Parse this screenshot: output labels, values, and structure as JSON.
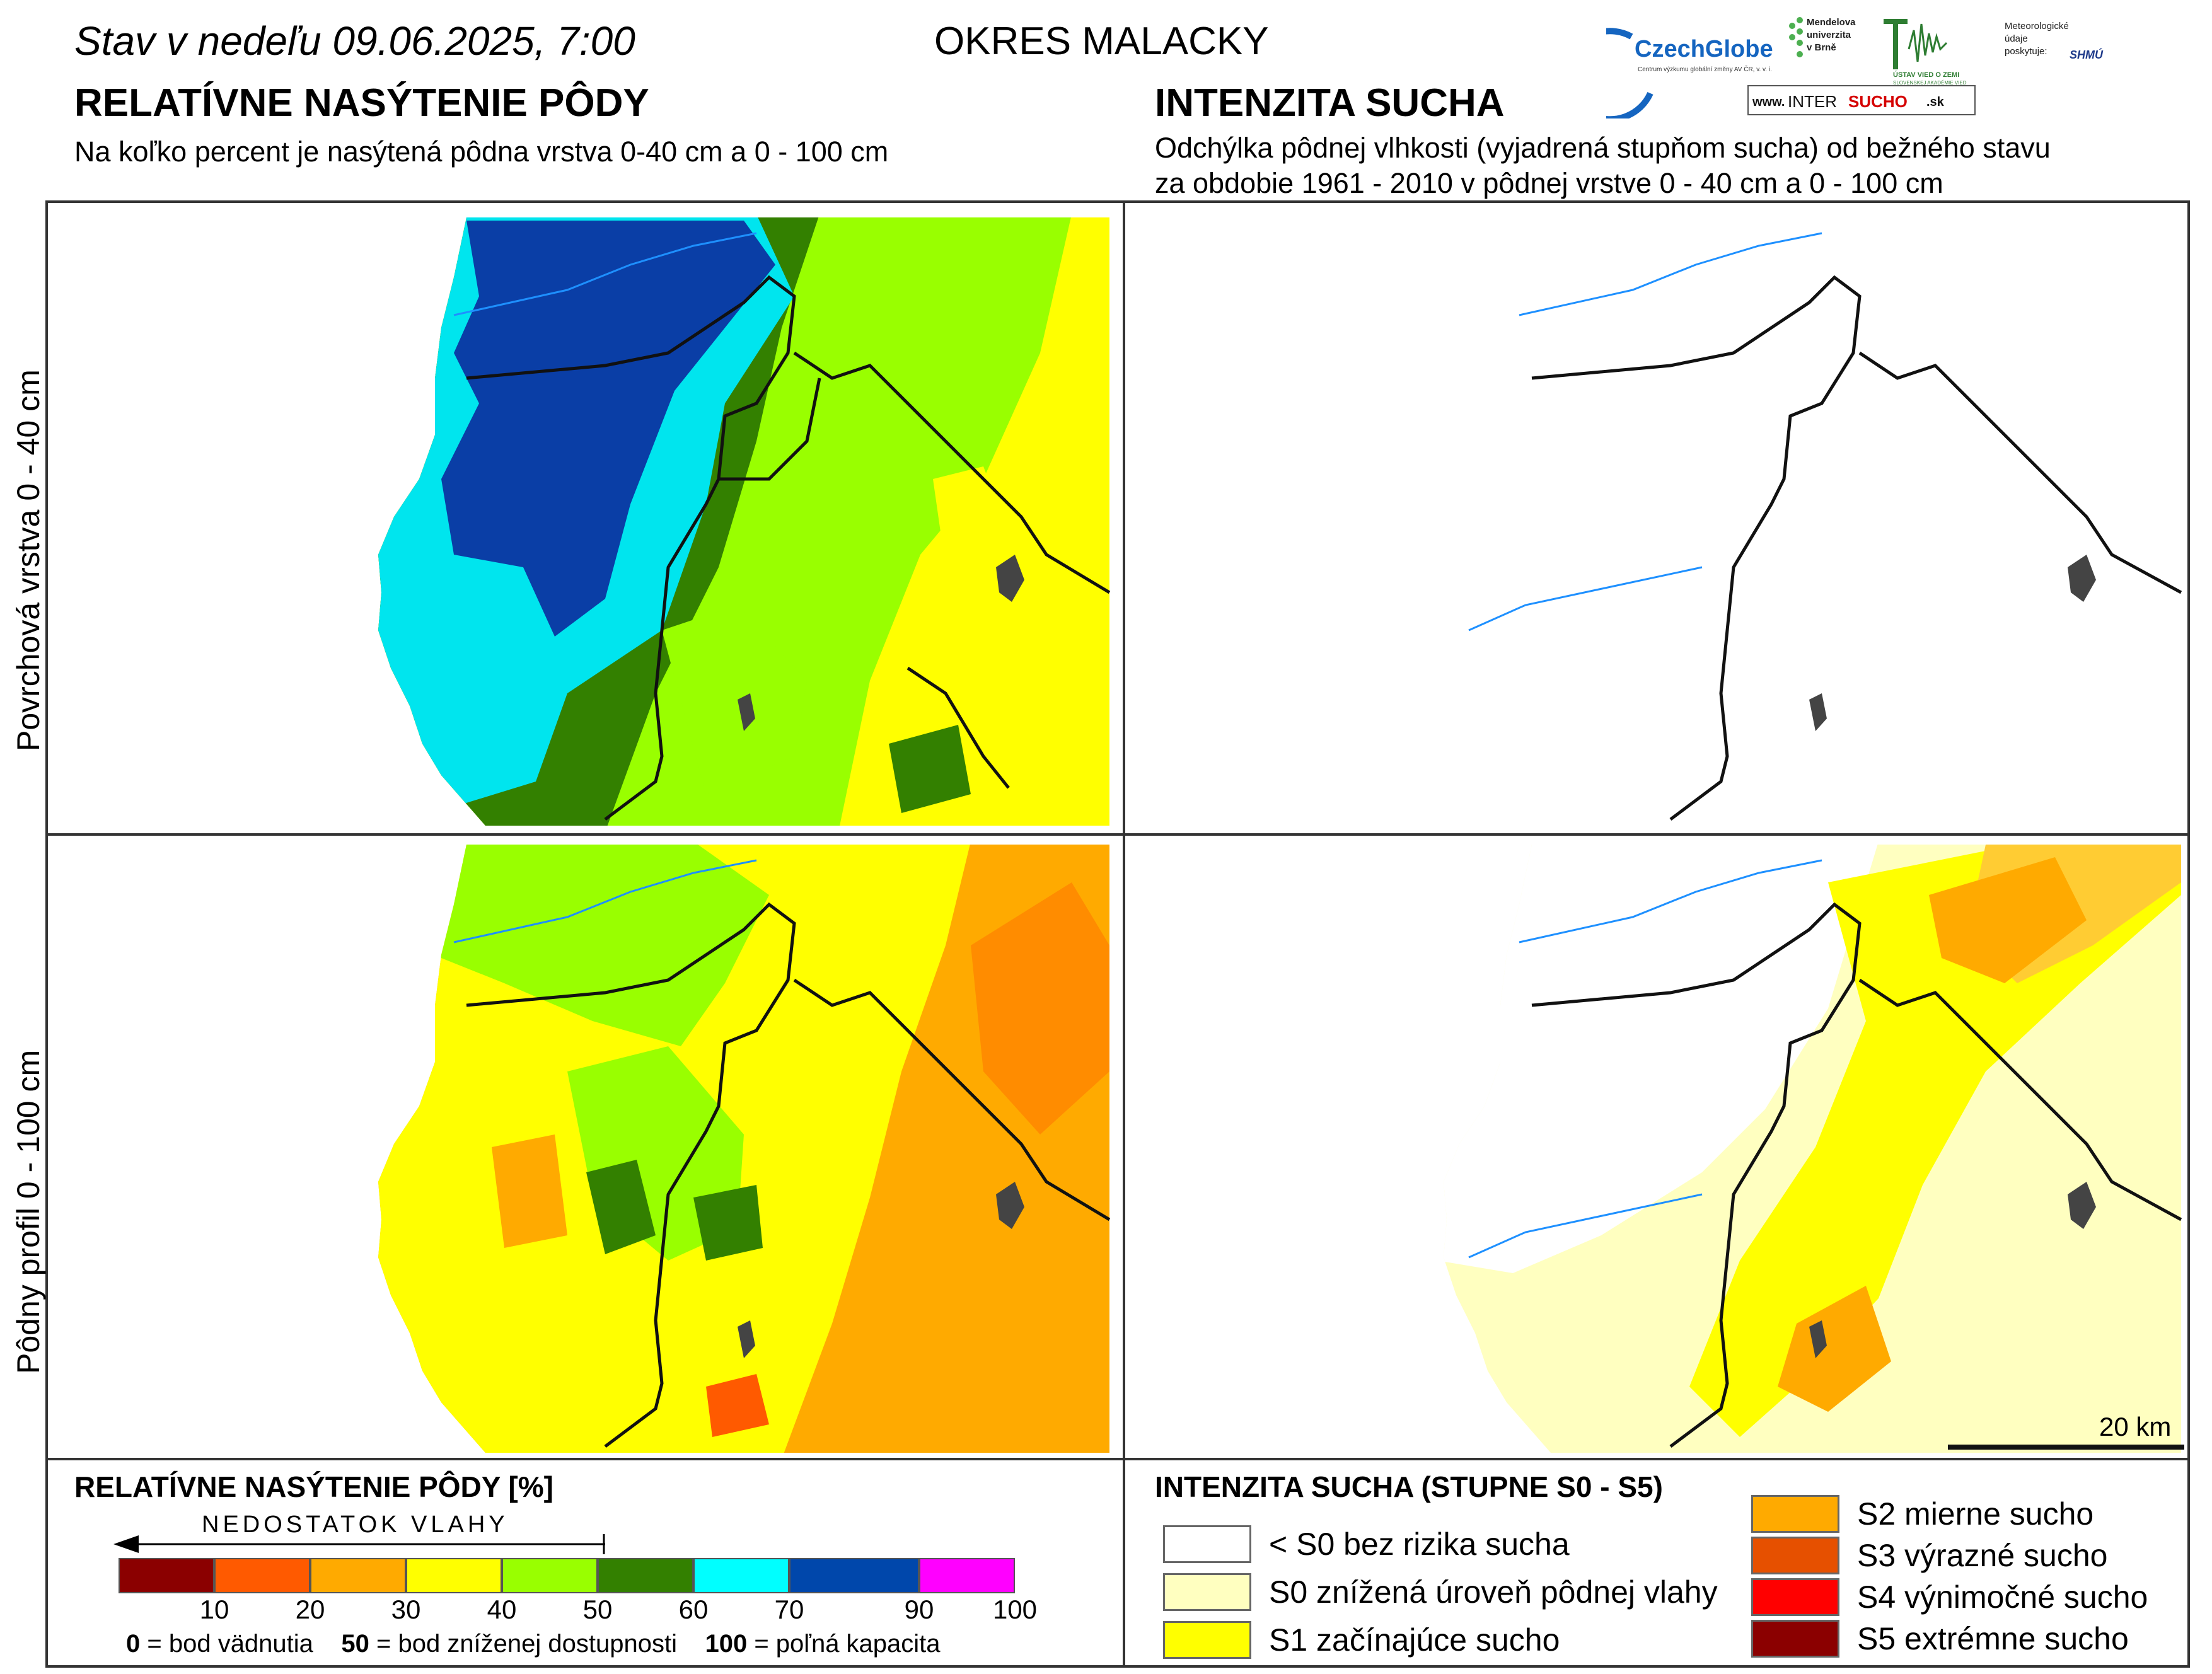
{
  "header": {
    "date_text": "Stav v nedeľu 09.06.2025, 7:00",
    "district": "OKRES  MALACKY",
    "left_title": "RELATÍVNE NASÝTENIE PÔDY",
    "left_subtitle": "Na koľko percent je nasýtená pôdna vrstva 0-40 cm a 0 - 100 cm",
    "right_title": "INTENZITA SUCHA",
    "right_subtitle_1": "Odchýlka pôdnej vlhkosti (vyjadrená stupňom sucha) od bežného stavu",
    "right_subtitle_2": "za obdobie 1961 - 2010 v pôdnej vrstve 0 - 40 cm a 0 - 100 cm"
  },
  "logos": {
    "czechglobe": "CzechGlobe",
    "czechglobe_sub": "Centrum výzkumu globální změny AV ČR, v. v. i.",
    "mendelu_1": "Mendelova",
    "mendelu_2": "univerzita",
    "mendelu_3": "v Brně",
    "ustav": "ÚSTAV VIED O ZEMI",
    "ustav_sub": "SLOVENSKEJ AKADÉMIE VIED",
    "meteo_1": "Meteorologické",
    "meteo_2": "údaje",
    "meteo_3": "poskytuje:",
    "shmu": "SHMÚ",
    "intersucho_prefix": "www.",
    "intersucho_a": "INTER",
    "intersucho_b": "SUCHO",
    "intersucho_c": ".sk"
  },
  "rows": {
    "top_label": "Povrchová vrstva 0 - 40 cm",
    "bottom_label": "Pôdny profil 0 - 100 cm"
  },
  "scale_bar": {
    "label": "20 km"
  },
  "saturation_legend": {
    "title": "RELATÍVNE NASÝTENIE PÔDY [%]",
    "arrow_label": "NEDOSTATOK VLAHY",
    "bins": [
      {
        "color": "#8b0000"
      },
      {
        "color": "#ff5a00"
      },
      {
        "color": "#ffaa00"
      },
      {
        "color": "#ffff00"
      },
      {
        "color": "#99ff00"
      },
      {
        "color": "#338000"
      },
      {
        "color": "#00ffff"
      },
      {
        "color": "#0047ab"
      },
      {
        "color": "#ff00ff"
      }
    ],
    "ticks": [
      "10",
      "20",
      "30",
      "40",
      "50",
      "60",
      "70",
      "90",
      "100"
    ],
    "def_0_num": "0",
    "def_0_text": " = bod vädnutia",
    "def_50_num": "50",
    "def_50_text": " = bod zníženej dostupnosti",
    "def_100_num": "100",
    "def_100_text": " = poľná kapacita"
  },
  "drought_legend": {
    "title": "INTENZITA SUCHA (STUPNE S0 - S5)",
    "items": [
      {
        "label": "< S0 bez rizika sucha",
        "color": "#ffffff"
      },
      {
        "label": "S0 znížená úroveň pôdnej vlahy",
        "color": "#ffffc0"
      },
      {
        "label": "S1 začínajúce sucho",
        "color": "#ffff00"
      },
      {
        "label": "S2 mierne sucho",
        "color": "#ffaa00"
      },
      {
        "label": "S3 výrazné sucho",
        "color": "#e65000"
      },
      {
        "label": "S4 výnimočné sucho",
        "color": "#ff0000"
      },
      {
        "label": "S5 extrémne sucho",
        "color": "#8b0000"
      }
    ]
  },
  "colors": {
    "frame": "#333333",
    "district_border": "#111111",
    "river": "#1e90ff",
    "town": "#444444"
  }
}
